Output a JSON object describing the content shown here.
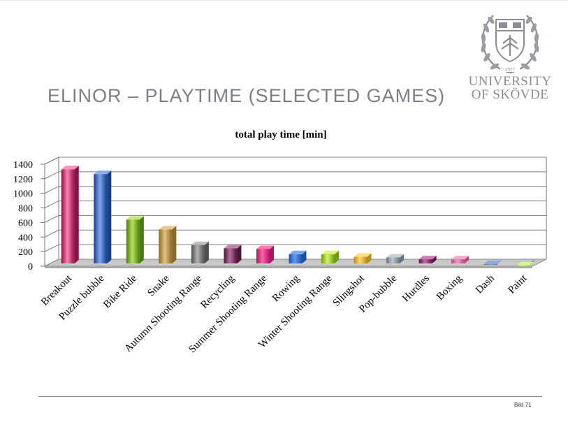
{
  "slide": {
    "title": "ELINOR – PLAYTIME (SELECTED GAMES)",
    "page_label": "Bild 71"
  },
  "logo": {
    "line1": "UNIVERSITY",
    "line2": "OF SKÖVDE",
    "seal_year": "1977",
    "icon": "university-seal-icon",
    "color": "#8a8e93"
  },
  "chart_data": {
    "type": "bar",
    "title": "total play time [min]",
    "xlabel": "",
    "ylabel": "",
    "ylim": [
      0,
      1400
    ],
    "yticks": [
      "0",
      "200",
      "400",
      "600",
      "800",
      "1000",
      "1200",
      "1400"
    ],
    "grid": true,
    "style": "3d",
    "categories": [
      "Breakout",
      "Puzzle bubble",
      "Bike Ride",
      "Snake",
      "Autumn Shooting Range",
      "Recycling",
      "Summer Shooting Range",
      "Rowing",
      "Winter Shooting Range",
      "Slingshot",
      "Pop-bubble",
      "Hurdles",
      "Boxing",
      "Dash",
      "Paint"
    ],
    "values": [
      1330,
      1265,
      640,
      505,
      290,
      245,
      235,
      165,
      165,
      130,
      120,
      95,
      95,
      30,
      10
    ],
    "colors": [
      "#ff7fb0",
      "#7fa6ea",
      "#b6e35b",
      "#e6c07e",
      "#b3b3b3",
      "#b5709c",
      "#ff63a8",
      "#5f9bf0",
      "#d3f460",
      "#ffd86a",
      "#bfc8d2",
      "#c76aa9",
      "#f29bc8",
      "#7ea7e2",
      "#d4ff8a"
    ],
    "darks": [
      "#8c0f46",
      "#173f8a",
      "#4c7a0f",
      "#8a6a22",
      "#4d4d4d",
      "#4d1538",
      "#b31265",
      "#1c4fa8",
      "#6d9d12",
      "#b88a16",
      "#65717e",
      "#5a1445",
      "#b3477d",
      "#3e5f99",
      "#78a337"
    ]
  }
}
